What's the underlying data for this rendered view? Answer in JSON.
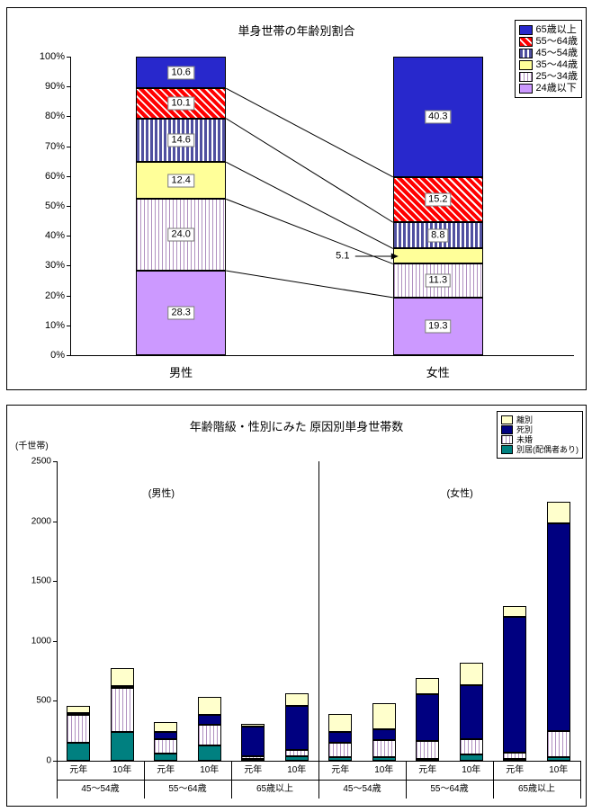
{
  "colors": {
    "axis": "#000000",
    "blue_65plus": "#2828cc",
    "red_hatch": "#ff0000",
    "purple_stripe": "#5050a0",
    "yellow": "#ffff99",
    "pale_yellow": "#ffffcc",
    "pink_stripe": "#b090c0",
    "lavender": "#cc99ff",
    "navy": "#000080",
    "teal": "#008080"
  },
  "chart_data": [
    {
      "type": "bar",
      "stacked": true,
      "orientation": "vertical",
      "title": "単身世帯の年齢別割合",
      "categories": [
        "男性",
        "女性"
      ],
      "series": [
        {
          "name": "24歳以下",
          "pattern": "solid-lavender",
          "values": [
            28.3,
            19.3
          ]
        },
        {
          "name": "25〜34歳",
          "pattern": "vstripe-pink",
          "values": [
            24.0,
            11.3
          ]
        },
        {
          "name": "35〜44歳",
          "pattern": "solid-yellow",
          "values": [
            12.4,
            5.1
          ]
        },
        {
          "name": "45〜54歳",
          "pattern": "vstripe-purple",
          "values": [
            14.6,
            8.8
          ]
        },
        {
          "name": "55〜64歳",
          "pattern": "hatch-red",
          "values": [
            10.1,
            15.2
          ]
        },
        {
          "name": "65歳以上",
          "pattern": "solid-blue",
          "values": [
            10.6,
            40.3
          ]
        }
      ],
      "legend_position": "top-right",
      "legend_order": "reversed",
      "ylim": [
        0,
        100
      ],
      "y_tick_step": 10,
      "y_tick_suffix": "%",
      "callout": {
        "category_index": 1,
        "series_index": 2,
        "label": "5.1"
      }
    },
    {
      "type": "bar",
      "stacked": true,
      "orientation": "vertical",
      "title": "年齢階級・性別にみた 原因別単身世帯数",
      "ylabel": "(千世帯)",
      "ylim": [
        0,
        2500
      ],
      "y_ticks": [
        0,
        500,
        1000,
        1500,
        2000,
        2500
      ],
      "panel_labels": [
        "(男性)",
        "(女性)"
      ],
      "age_groups": [
        "45〜54歳",
        "55〜64歳",
        "65歳以上",
        "45〜54歳",
        "55〜64歳",
        "65歳以上"
      ],
      "year_labels": [
        "元年",
        "10年",
        "元年",
        "10年",
        "元年",
        "10年",
        "元年",
        "10年",
        "元年",
        "10年",
        "元年",
        "10年"
      ],
      "legend_position": "top-right",
      "legend_order": "reversed",
      "series": [
        {
          "name": "別居(配偶者あり)",
          "pattern": "solid-teal",
          "values": [
            150,
            240,
            60,
            130,
            15,
            40,
            30,
            30,
            15,
            50,
            15,
            30
          ]
        },
        {
          "name": "未婚",
          "pattern": "vstripe-pink",
          "values": [
            230,
            370,
            120,
            170,
            25,
            50,
            120,
            140,
            150,
            130,
            55,
            220
          ]
        },
        {
          "name": "死別",
          "pattern": "solid-navy",
          "values": [
            15,
            15,
            60,
            80,
            245,
            370,
            90,
            90,
            390,
            450,
            1130,
            1730
          ]
        },
        {
          "name": "離別",
          "pattern": "solid-paleyellow",
          "values": [
            65,
            145,
            80,
            150,
            25,
            100,
            150,
            220,
            135,
            190,
            90,
            180
          ]
        }
      ]
    }
  ]
}
